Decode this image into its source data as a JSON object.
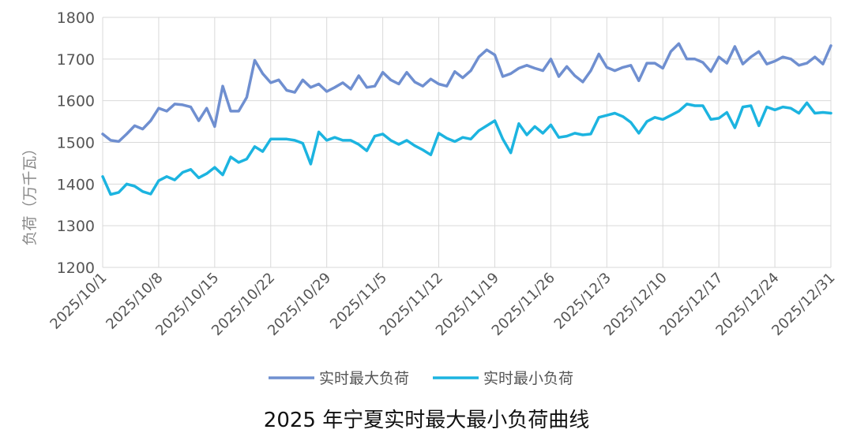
{
  "chart_data": {
    "type": "line",
    "title": "2025 年宁夏实时最大最小负荷曲线",
    "xlabel": "",
    "ylabel": "负荷（万千瓦）",
    "ylim": [
      1200,
      1800
    ],
    "yticks": [
      1200,
      1300,
      1400,
      1500,
      1600,
      1700,
      1800
    ],
    "x_start": "2025/10/1",
    "x_end": "2025/12/31",
    "x_ticks": [
      "2025/10/1",
      "2025/10/8",
      "2025/10/15",
      "2025/10/22",
      "2025/10/29",
      "2025/11/5",
      "2025/11/12",
      "2025/11/19",
      "2025/11/26",
      "2025/12/3",
      "2025/12/10",
      "2025/12/17",
      "2025/12/24",
      "2025/12/31"
    ],
    "grid": "vertical and horizontal",
    "legend_position": "bottom",
    "series": [
      {
        "name": "实时最大负荷",
        "color": "#6f8fd0",
        "values": [
          1520,
          1505,
          1502,
          1520,
          1540,
          1532,
          1552,
          1582,
          1575,
          1592,
          1590,
          1585,
          1552,
          1582,
          1538,
          1635,
          1575,
          1575,
          1608,
          1697,
          1665,
          1643,
          1650,
          1625,
          1620,
          1650,
          1632,
          1640,
          1622,
          1632,
          1643,
          1628,
          1660,
          1632,
          1635,
          1668,
          1650,
          1640,
          1668,
          1645,
          1635,
          1652,
          1640,
          1635,
          1670,
          1655,
          1672,
          1705,
          1722,
          1710,
          1658,
          1665,
          1678,
          1685,
          1678,
          1672,
          1700,
          1658,
          1682,
          1660,
          1645,
          1672,
          1712,
          1680,
          1672,
          1680,
          1685,
          1648,
          1690,
          1690,
          1678,
          1718,
          1737,
          1700,
          1700,
          1692,
          1670,
          1705,
          1690,
          1730,
          1688,
          1705,
          1718,
          1688,
          1695,
          1705,
          1700,
          1685,
          1690,
          1705,
          1688,
          1732
        ]
      },
      {
        "name": "实时最小负荷",
        "color": "#1cb4e0",
        "values": [
          1418,
          1375,
          1380,
          1400,
          1395,
          1382,
          1376,
          1408,
          1418,
          1410,
          1428,
          1435,
          1415,
          1425,
          1440,
          1422,
          1465,
          1452,
          1460,
          1490,
          1478,
          1508,
          1508,
          1508,
          1505,
          1498,
          1448,
          1525,
          1505,
          1512,
          1505,
          1505,
          1495,
          1480,
          1515,
          1520,
          1505,
          1495,
          1505,
          1492,
          1482,
          1470,
          1522,
          1510,
          1502,
          1512,
          1508,
          1528,
          1540,
          1552,
          1508,
          1475,
          1545,
          1518,
          1538,
          1522,
          1542,
          1512,
          1515,
          1522,
          1518,
          1520,
          1560,
          1565,
          1570,
          1562,
          1548,
          1522,
          1550,
          1560,
          1555,
          1565,
          1575,
          1592,
          1588,
          1588,
          1555,
          1558,
          1572,
          1535,
          1585,
          1588,
          1540,
          1585,
          1578,
          1585,
          1582,
          1570,
          1595,
          1570,
          1572,
          1570
        ]
      }
    ]
  }
}
